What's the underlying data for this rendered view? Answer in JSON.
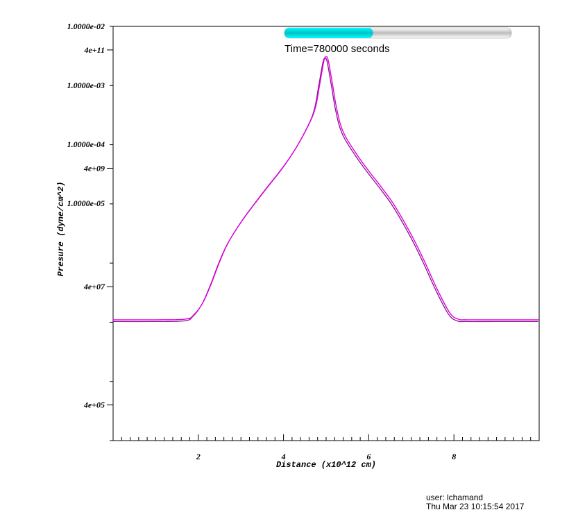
{
  "chart_data": {
    "type": "line",
    "xlabel": "Distance (x10^12 cm)",
    "ylabel": "Presure (dyne/cm^2)",
    "xlim": [
      0,
      10
    ],
    "x_ticks": [
      2,
      4,
      6,
      8
    ],
    "x_tick_labels": [
      "2",
      "4",
      "6",
      "8"
    ],
    "yscale": "log",
    "ylim": [
      100000.0,
      1000000000000.0
    ],
    "y_ticks": [
      400000.0,
      40000000.0,
      4000000000.0,
      400000000000.0
    ],
    "y_tick_labels": [
      "4e+05",
      "4e+07",
      "4e+09",
      "4e+11"
    ],
    "secondary_y_tick_labels": [
      "1.0000e-02",
      "1.0000e-03",
      "1.0000e-04",
      "1.0000e-05"
    ],
    "grid": false,
    "colors": {
      "curve": "#e000e0",
      "curve_dark": "#8a1090",
      "progress_fill": "#00d8d8",
      "progress_track": "#d8d8d8"
    },
    "series": [
      {
        "x": [
          0,
          1,
          1.7,
          1.9,
          2.1,
          2.3,
          2.5,
          2.7,
          3.0,
          3.3,
          3.6,
          4.0,
          4.3,
          4.6,
          4.75,
          4.85,
          4.95,
          5.0,
          5.05,
          5.15,
          5.25,
          5.4,
          5.7,
          6.0,
          6.3,
          6.6,
          7.0,
          7.3,
          7.6,
          7.9,
          8.1,
          8.3,
          9.0,
          10
        ],
        "y": [
          11000000.0,
          11000000.0,
          11300000.0,
          13500000.0,
          21000000.0,
          44000000.0,
          105000000.0,
          220000000.0,
          490000000.0,
          970000000.0,
          1850000000.0,
          4300000000.0,
          9000000000.0,
          22500000000.0,
          43000000000.0,
          105000000000.0,
          265000000000.0,
          305000000000.0,
          265000000000.0,
          105000000000.0,
          40000000000.0,
          16500000000.0,
          7200000000.0,
          3600000000.0,
          1900000000.0,
          950000000.0,
          300000000.0,
          110000000.0,
          37000000.0,
          14500000.0,
          11300000.0,
          11000000.0,
          11000000.0,
          11000000.0
        ]
      }
    ],
    "progress": {
      "fraction": 0.39,
      "label": "Time=780000 seconds"
    }
  },
  "footer": {
    "user": "user: lchamand",
    "timestamp": "Thu Mar 23 10:15:54 2017"
  }
}
